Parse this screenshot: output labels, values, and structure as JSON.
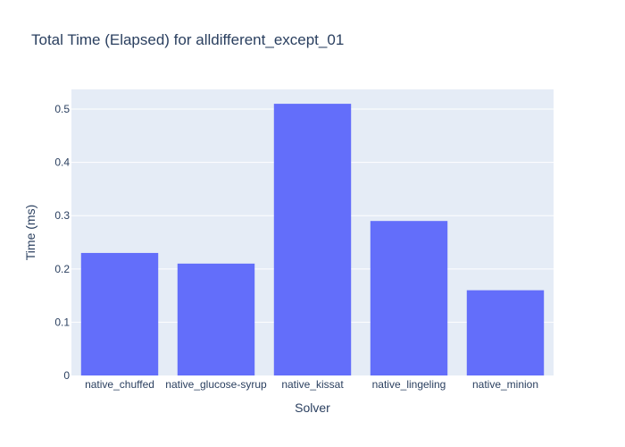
{
  "chart_data": {
    "type": "bar",
    "title": "Total Time (Elapsed) for alldifferent_except_01",
    "xlabel": "Solver",
    "ylabel": "Time (ms)",
    "categories": [
      "native_chuffed",
      "native_glucose-syrup",
      "native_kissat",
      "native_lingeling",
      "native_minion"
    ],
    "values": [
      0.23,
      0.21,
      0.51,
      0.29,
      0.16
    ],
    "ylim": [
      0,
      0.537
    ],
    "yticks": [
      0,
      0.1,
      0.2,
      0.3,
      0.4,
      0.5
    ],
    "ytick_labels": [
      "0",
      "0.1",
      "0.2",
      "0.3",
      "0.4",
      "0.5"
    ],
    "grid": true,
    "legend": "none",
    "colors": {
      "bar": "#636efa",
      "plot_background": "#e5ecf6",
      "text": "#2a3f5f",
      "grid": "#ffffff"
    }
  }
}
